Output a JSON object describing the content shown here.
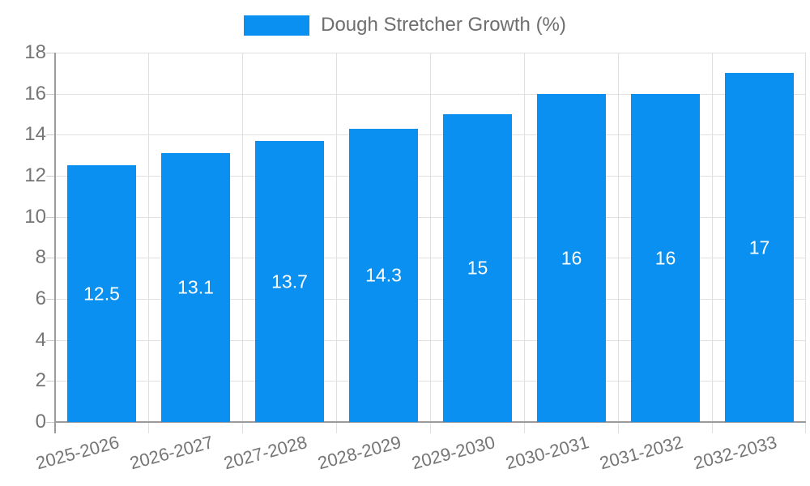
{
  "legend": {
    "label": "Dough Stretcher Growth (%)"
  },
  "chart_data": {
    "type": "bar",
    "title": "",
    "series_name": "Dough Stretcher Growth (%)",
    "legend_entries": [
      "Dough Stretcher Growth (%)"
    ],
    "legend_position": "top-center",
    "categories": [
      "2025-2026",
      "2026-2027",
      "2027-2028",
      "2028-2029",
      "2029-2030",
      "2030-2031",
      "2031-2032",
      "2032-2033"
    ],
    "values": [
      12.5,
      13.1,
      13.7,
      14.3,
      15,
      16,
      16,
      17
    ],
    "value_labels": [
      "12.5",
      "13.1",
      "13.7",
      "14.3",
      "15",
      "16",
      "16",
      "17"
    ],
    "xlabel": "",
    "ylabel": "",
    "ylim": [
      0,
      18
    ],
    "yticks": [
      0,
      2,
      4,
      6,
      8,
      10,
      12,
      14,
      16,
      18
    ],
    "grid": true,
    "x_label_rotation_deg": -15,
    "colors": {
      "bar": "#0a90f0",
      "value_label": "#ffffff",
      "axis_text": "#757575",
      "legend_text": "#6e6e6e",
      "gridline": "#e0e0e0",
      "tick": "#c9c9c9",
      "axis_line": "#9b9b9b",
      "background": "#ffffff"
    }
  }
}
